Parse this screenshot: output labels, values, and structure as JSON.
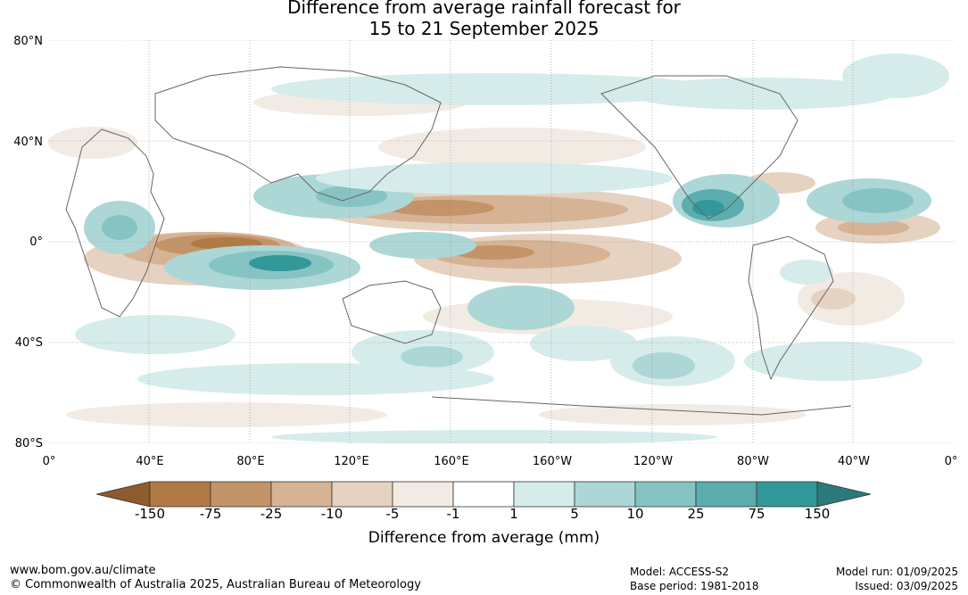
{
  "title_line1": "Difference from average rainfall forecast for",
  "title_line2": "15 to 21 September 2025",
  "lat_labels": [
    "80°N",
    "40°N",
    "0°",
    "40°S",
    "80°S"
  ],
  "lon_labels": [
    "0°",
    "40°E",
    "80°E",
    "120°E",
    "160°E",
    "160°W",
    "120°W",
    "80°W",
    "40°W",
    "0°"
  ],
  "colorbar": {
    "ticks": [
      "-150",
      "-75",
      "-25",
      "-10",
      "-5",
      "-1",
      "1",
      "5",
      "10",
      "25",
      "75",
      "150"
    ],
    "colors": [
      "#8f5a2c",
      "#b07a44",
      "#c39468",
      "#d5b394",
      "#e6d2c0",
      "#f2ebe4",
      "#ffffff",
      "#d6eceb",
      "#acd7d6",
      "#86c4c3",
      "#5cadad",
      "#32999a",
      "#2a7a7b"
    ],
    "label": "Difference from average (mm)"
  },
  "footer": {
    "website": "www.bom.gov.au/climate",
    "copyright": "© Commonwealth of Australia 2025, Australian Bureau of Meteorology",
    "model": "Model: ACCESS-S2",
    "base_period": "Base period: 1981-2018",
    "model_run": "Model run: 01/09/2025",
    "issued": "Issued: 03/09/2025"
  }
}
